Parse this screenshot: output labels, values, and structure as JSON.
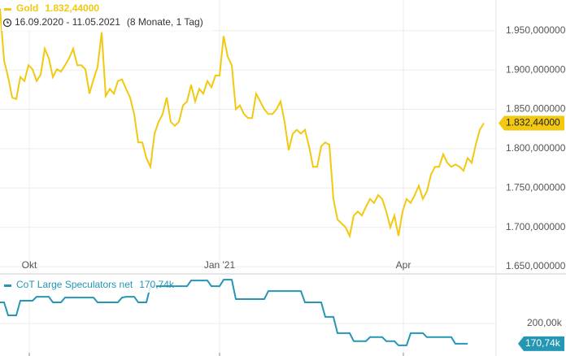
{
  "chart_data": [
    {
      "type": "line",
      "subtitle": "16.09.2020 - 11.05.2021",
      "note": "(8 Monate, 1 Tag)",
      "xlim": [
        0,
        122
      ],
      "xticks": [
        {
          "value": 7.2,
          "label": "Okt"
        },
        {
          "value": 54,
          "label": "Jan '21"
        },
        {
          "value": 99.2,
          "label": "Apr"
        }
      ],
      "ylim": [
        1648,
        1989
      ],
      "yticks": [
        {
          "value": 1650,
          "label": "1.650,000000"
        },
        {
          "value": 1700,
          "label": "1.700,000000"
        },
        {
          "value": 1750,
          "label": "1.750,000000"
        },
        {
          "value": 1800,
          "label": "1.800,000000"
        },
        {
          "value": 1850,
          "label": "1.850,000000"
        },
        {
          "value": 1900,
          "label": "1.900,000000"
        },
        {
          "value": 1950,
          "label": "1.950,000000"
        }
      ],
      "grid": true,
      "series": [
        {
          "name": "Gold",
          "color": "#f2c811",
          "last_value": {
            "value": 1832.44,
            "label": "1.832,44000"
          },
          "values": [
            1978,
            1912,
            1891,
            1865,
            1863,
            1891,
            1886,
            1906,
            1901,
            1886,
            1894,
            1927,
            1915,
            1891,
            1901,
            1898,
            1906,
            1915,
            1927,
            1906,
            1906,
            1901,
            1870,
            1888,
            1904,
            1948,
            1867,
            1876,
            1870,
            1886,
            1888,
            1876,
            1865,
            1844,
            1808,
            1808,
            1788,
            1777,
            1819,
            1834,
            1844,
            1865,
            1834,
            1829,
            1834,
            1855,
            1860,
            1881,
            1860,
            1876,
            1870,
            1886,
            1878,
            1893,
            1893,
            1943,
            1917,
            1906,
            1850,
            1855,
            1844,
            1839,
            1839,
            1870,
            1860,
            1850,
            1844,
            1844,
            1850,
            1860,
            1834,
            1798,
            1819,
            1824,
            1819,
            1824,
            1803,
            1777,
            1777,
            1803,
            1808,
            1805,
            1736,
            1710,
            1705,
            1700,
            1689,
            1715,
            1720,
            1715,
            1726,
            1736,
            1731,
            1741,
            1736,
            1720,
            1700,
            1715,
            1689,
            1720,
            1736,
            1731,
            1741,
            1753,
            1736,
            1746,
            1767,
            1777,
            1777,
            1793,
            1782,
            1777,
            1780,
            1777,
            1772,
            1788,
            1782,
            1805,
            1824,
            1832.44
          ]
        }
      ]
    },
    {
      "type": "line",
      "xlim": [
        0,
        122
      ],
      "ylim": [
        153,
        268
      ],
      "yticks": [
        {
          "value": 200,
          "label": "200,00k"
        }
      ],
      "grid": true,
      "series": [
        {
          "name": "CoT Large Speculators net",
          "color": "#2596b4",
          "last_value": {
            "value": 170.74,
            "label": "170,74k"
          },
          "values": [
            230.4,
            230.4,
            211.7,
            211.7,
            211.7,
            232.8,
            232.8,
            232.8,
            232.8,
            238.6,
            238.6,
            238.6,
            238.6,
            230.4,
            230.4,
            230.4,
            237.4,
            237.4,
            237.4,
            237.4,
            237.4,
            237.4,
            237.4,
            237.4,
            230.4,
            230.4,
            230.4,
            230.4,
            230.4,
            230.4,
            237.4,
            238.6,
            238.6,
            238.6,
            230.4,
            230.4,
            230.4,
            253.8,
            253.8,
            253.8,
            253.8,
            253.8,
            253.8,
            253.8,
            253.8,
            253.8,
            253.8,
            262,
            262,
            262,
            262,
            262,
            253.8,
            253.8,
            253.8,
            263.2,
            263.2,
            263.2,
            235.1,
            235.1,
            235.1,
            235.1,
            235.1,
            235.1,
            235.1,
            235.1,
            246.8,
            246.8,
            246.8,
            246.8,
            246.8,
            246.8,
            246.8,
            246.8,
            246.8,
            230.4,
            230.4,
            230.4,
            230.4,
            230.4,
            209.4,
            209.4,
            209.4,
            186,
            186,
            186,
            186,
            174.3,
            174.3,
            174.3,
            174.3,
            180.2,
            180.2,
            180.2,
            180.2,
            174.3,
            174.3,
            174.3,
            168.4,
            168.4,
            168.4,
            186,
            186,
            186,
            186,
            180.2,
            180.2,
            180.2,
            180.2,
            180.2,
            180.2,
            180.2,
            170.74,
            170.74,
            170.74,
            170.74
          ]
        }
      ]
    }
  ]
}
